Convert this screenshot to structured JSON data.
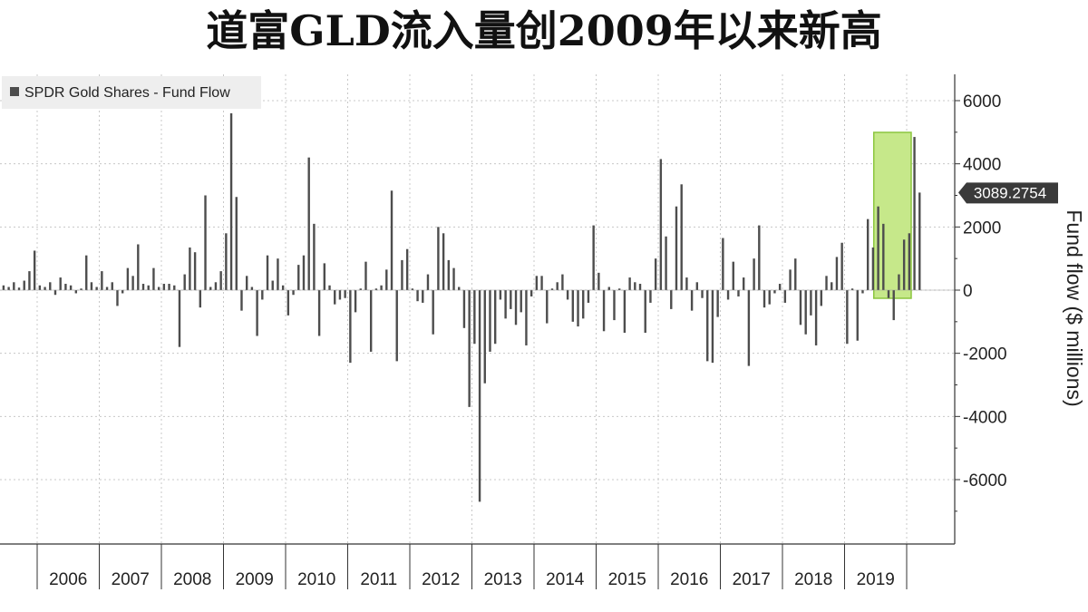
{
  "title": "道富GLD流入量创2009年以来新高",
  "chart_data": {
    "type": "bar",
    "legend": {
      "label": "SPDR Gold Shares - Fund Flow",
      "placement": "top-left",
      "color": "#4d4d4d"
    },
    "ylabel": "Fund flow ($ millions)",
    "ylim": [
      -8000,
      6800
    ],
    "yticks": [
      6000,
      4000,
      2000,
      0,
      -2000,
      -4000,
      -6000
    ],
    "y_axis_side": "right",
    "grid": true,
    "bar_color": "#4d4d4d",
    "x_start_year": 2005,
    "years": [
      "2006",
      "2007",
      "2008",
      "2009",
      "2010",
      "2011",
      "2012",
      "2013",
      "2014",
      "2015",
      "2016",
      "2017",
      "2018",
      "2019"
    ],
    "values": [
      50,
      -50,
      150,
      100,
      200,
      150,
      100,
      250,
      80,
      300,
      600,
      1250,
      150,
      100,
      250,
      -150,
      400,
      200,
      150,
      -100,
      50,
      1100,
      250,
      100,
      600,
      100,
      250,
      -500,
      -100,
      700,
      450,
      1450,
      200,
      150,
      700,
      100,
      200,
      200,
      150,
      -1800,
      500,
      1350,
      1200,
      -550,
      3000,
      100,
      250,
      600,
      1800,
      5600,
      2950,
      -650,
      450,
      100,
      -1450,
      -300,
      1100,
      300,
      1000,
      150,
      -800,
      -150,
      800,
      1100,
      4200,
      2100,
      -1450,
      850,
      150,
      -450,
      -300,
      -250,
      -2300,
      -700,
      50,
      900,
      -1950,
      50,
      150,
      650,
      3150,
      -2250,
      950,
      1300,
      50,
      -350,
      -400,
      500,
      -1400,
      2000,
      1800,
      950,
      700,
      100,
      -1200,
      -3700,
      -1700,
      -6700,
      -2950,
      -1950,
      -1700,
      -300,
      -900,
      -600,
      -1100,
      -700,
      -1750,
      -200,
      450,
      450,
      -1050,
      50,
      250,
      500,
      -300,
      -1000,
      -1150,
      -900,
      -400,
      2050,
      550,
      -1300,
      100,
      -950,
      50,
      -1350,
      400,
      250,
      200,
      -1350,
      -400,
      1000,
      4150,
      1700,
      -600,
      2650,
      3350,
      400,
      -650,
      250,
      -250,
      -2250,
      -2300,
      -850,
      1650,
      -300,
      900,
      -200,
      400,
      -2400,
      1000,
      2050,
      -550,
      -450,
      -100,
      200,
      -400,
      650,
      1000,
      -1100,
      -1400,
      -800,
      -1750,
      -500,
      450,
      250,
      1050,
      1500,
      -1700,
      50,
      -1600,
      -100,
      2250,
      1350,
      2650,
      2100,
      -250,
      -950,
      500,
      1600,
      1800,
      4850,
      3089.2754
    ],
    "latest_value_label": "3089.2754",
    "highlight": {
      "from_month_index": 174,
      "to_month_index": 180,
      "color": "#c6e88a",
      "border": "#8cc63f"
    }
  }
}
